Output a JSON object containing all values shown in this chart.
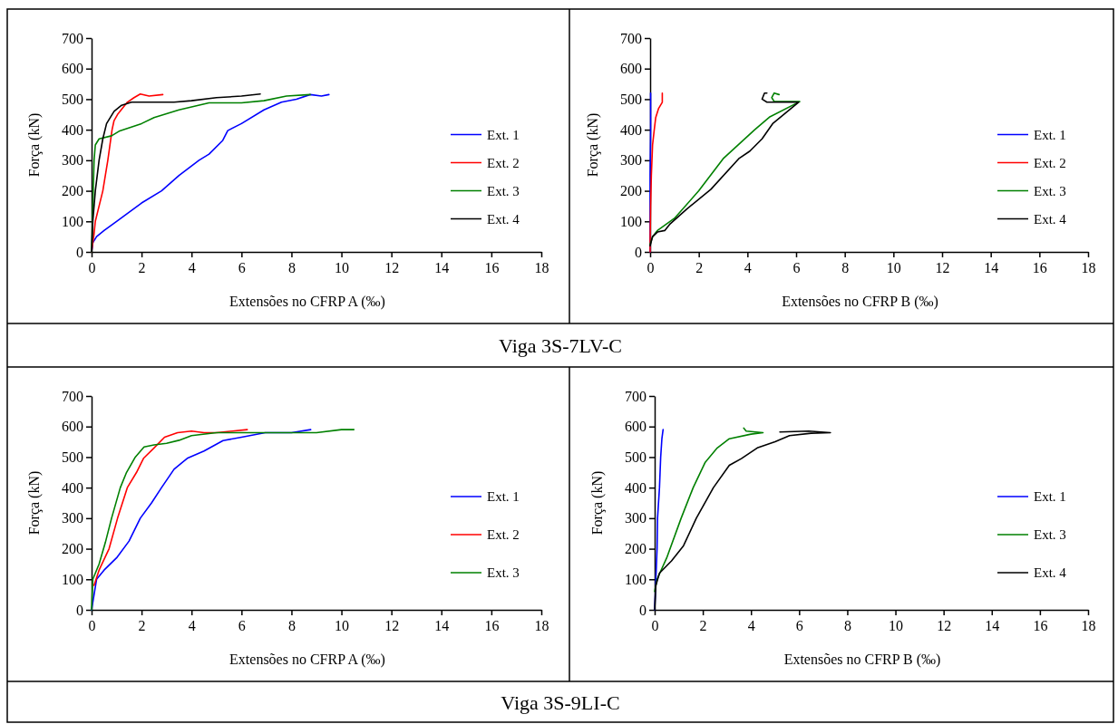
{
  "chart_data": [
    {
      "type": "line",
      "xlabel": "Extensões no CFRP A (‰)",
      "ylabel": "Força (kN)",
      "xlim": [
        0,
        18
      ],
      "ylim": [
        0,
        700
      ],
      "xticks": [
        0,
        2,
        4,
        6,
        8,
        10,
        12,
        14,
        16,
        18
      ],
      "yticks": [
        0,
        100,
        200,
        300,
        400,
        500,
        600,
        700
      ],
      "legend": "right",
      "grid": false,
      "marker": "none",
      "line_style": "solid",
      "annotations": [
        "Viga 3S-7LV-C"
      ],
      "series": [
        {
          "name": "Ext. 1",
          "color": "#0000ff",
          "x": [
            0,
            0.05,
            0.2,
            0.5,
            1,
            2,
            2.8,
            3.5,
            4.3,
            4.7,
            5.25,
            5.45,
            6,
            6.9,
            7.6,
            8.2,
            8.75,
            9.2,
            9.5
          ],
          "values": [
            0,
            30,
            50,
            70,
            100,
            160,
            200,
            250,
            300,
            320,
            365,
            397,
            420,
            465,
            490,
            500,
            515,
            510,
            515
          ]
        },
        {
          "name": "Ext. 2",
          "color": "#ff0000",
          "x": [
            0,
            0.1,
            0.15,
            0.45,
            0.65,
            0.82,
            0.9,
            1.04,
            1.43,
            1.7,
            1.95,
            2.3,
            2.85
          ],
          "values": [
            0,
            60,
            100,
            200,
            300,
            400,
            430,
            450,
            490,
            505,
            517,
            510,
            515
          ]
        },
        {
          "name": "Ext. 3",
          "color": "#008000",
          "x": [
            0,
            0.05,
            0.1,
            0.15,
            0.3,
            0.8,
            1.1,
            2,
            2.5,
            3.5,
            4.7,
            6,
            6.9,
            7.8,
            8.75
          ],
          "values": [
            0,
            150,
            300,
            350,
            370,
            380,
            395,
            420,
            440,
            465,
            488,
            488,
            495,
            510,
            515
          ]
        },
        {
          "name": "Ext. 4",
          "color": "#000000",
          "x": [
            0,
            0.05,
            0.15,
            0.3,
            0.45,
            0.6,
            0.9,
            1.2,
            1.6,
            3.3,
            4,
            5,
            6,
            6.75
          ],
          "values": [
            0,
            100,
            200,
            300,
            370,
            420,
            460,
            480,
            490,
            490,
            495,
            505,
            510,
            517
          ]
        }
      ]
    },
    {
      "type": "line",
      "xlabel": "Extensões no CFRP B (‰)",
      "ylabel": "Força (kN)",
      "xlim": [
        0,
        18
      ],
      "ylim": [
        0,
        700
      ],
      "xticks": [
        0,
        2,
        4,
        6,
        8,
        10,
        12,
        14,
        16,
        18
      ],
      "yticks": [
        0,
        100,
        200,
        300,
        400,
        500,
        600,
        700
      ],
      "legend": "right",
      "grid": false,
      "marker": "none",
      "line_style": "solid",
      "series": [
        {
          "name": "Ext. 1",
          "color": "#0000ff",
          "x": [
            0,
            0,
            0.02,
            0.02
          ],
          "values": [
            0,
            250,
            400,
            520
          ]
        },
        {
          "name": "Ext. 2",
          "color": "#ff0000",
          "x": [
            0,
            0,
            0.02,
            0.05,
            0.1,
            0.17,
            0.23,
            0.35,
            0.5,
            0.5
          ],
          "values": [
            0,
            40,
            150,
            250,
            350,
            400,
            440,
            470,
            490,
            520
          ]
        },
        {
          "name": "Ext. 3",
          "color": "#008000",
          "x": [
            0,
            0.1,
            0.3,
            1,
            2,
            3,
            4.3,
            4.9,
            6.15,
            5.1,
            5,
            5.1,
            5.3
          ],
          "values": [
            25,
            50,
            70,
            110,
            200,
            305,
            400,
            441,
            492,
            492,
            505,
            520,
            515
          ]
        },
        {
          "name": "Ext. 4",
          "color": "#000000",
          "x": [
            0,
            0.1,
            0.3,
            0.6,
            0.8,
            1.5,
            2.5,
            3.64,
            4.1,
            4.6,
            5.05,
            6.1,
            4.8,
            4.6,
            4.7,
            4.8
          ],
          "values": [
            20,
            50,
            65,
            70,
            90,
            140,
            205,
            305,
            330,
            370,
            421,
            490,
            490,
            500,
            520,
            520
          ]
        }
      ]
    },
    {
      "type": "line",
      "xlabel": "Extensões no CFRP A (‰)",
      "ylabel": "Força (kN)",
      "xlim": [
        0,
        18
      ],
      "ylim": [
        0,
        700
      ],
      "xticks": [
        0,
        2,
        4,
        6,
        8,
        10,
        12,
        14,
        16,
        18
      ],
      "yticks": [
        0,
        100,
        200,
        300,
        400,
        500,
        600,
        700
      ],
      "legend": "right",
      "grid": false,
      "marker": "none",
      "line_style": "solid",
      "annotations": [
        "Viga 3S-9LI-C"
      ],
      "series": [
        {
          "name": "Ext. 1",
          "color": "#0000ff",
          "x": [
            0,
            0.2,
            0.5,
            1,
            1.5,
            1.95,
            2.4,
            2.8,
            3.3,
            3.83,
            4.5,
            5.26,
            6,
            6.95,
            8,
            8.77
          ],
          "values": [
            0,
            100,
            130,
            170,
            225,
            300,
            350,
            400,
            460,
            496,
            520,
            554,
            565,
            580,
            580,
            590
          ]
        },
        {
          "name": "Ext. 2",
          "color": "#ff0000",
          "x": [
            0.1,
            0.3,
            0.7,
            1.04,
            1.43,
            1.8,
            2.08,
            2.5,
            2.92,
            3.44,
            4,
            4.5,
            5,
            6.23
          ],
          "values": [
            80,
            130,
            200,
            300,
            400,
            450,
            496,
            530,
            565,
            580,
            585,
            580,
            580,
            590
          ]
        },
        {
          "name": "Ext. 3",
          "color": "#008000",
          "x": [
            0,
            0.05,
            0.3,
            0.55,
            0.8,
            1.15,
            1.4,
            1.75,
            2.1,
            2.5,
            3,
            3.5,
            4,
            5,
            6,
            7,
            8,
            9,
            10,
            10.5
          ],
          "values": [
            0,
            100,
            150,
            220,
            300,
            400,
            450,
            500,
            533,
            540,
            545,
            555,
            570,
            580,
            580,
            580,
            580,
            580,
            590,
            590
          ]
        }
      ]
    },
    {
      "type": "line",
      "xlabel": "Extensões no CFRP B (‰)",
      "ylabel": "Força (kN)",
      "xlim": [
        0,
        18
      ],
      "ylim": [
        0,
        700
      ],
      "xticks": [
        0,
        2,
        4,
        6,
        8,
        10,
        12,
        14,
        16,
        18
      ],
      "yticks": [
        0,
        100,
        200,
        300,
        400,
        500,
        600,
        700
      ],
      "legend": "right",
      "grid": false,
      "marker": "none",
      "line_style": "solid",
      "series": [
        {
          "name": "Ext. 1",
          "color": "#0000ff",
          "x": [
            0,
            0.05,
            0.1,
            0.12,
            0.2,
            0.25,
            0.3,
            0.35
          ],
          "values": [
            0,
            100,
            200,
            300,
            400,
            500,
            560,
            590
          ]
        },
        {
          "name": "Ext. 3",
          "color": "#008000",
          "x": [
            0,
            0.1,
            0.5,
            1.1,
            1.6,
            2.1,
            2.6,
            3.1,
            4,
            4.5,
            4.2,
            3.8,
            3.7
          ],
          "values": [
            60,
            100,
            170,
            300,
            400,
            483,
            530,
            560,
            575,
            580,
            582,
            585,
            595
          ]
        },
        {
          "name": "Ext. 4",
          "color": "#000000",
          "x": [
            0,
            0.05,
            0.2,
            0.7,
            1.2,
            1.73,
            2.44,
            3.1,
            3.6,
            4.26,
            5,
            5.6,
            6.5,
            7.3,
            6.4,
            5.2
          ],
          "values": [
            0,
            80,
            120,
            160,
            210,
            300,
            400,
            473,
            495,
            530,
            550,
            570,
            578,
            580,
            585,
            582
          ]
        }
      ]
    }
  ]
}
